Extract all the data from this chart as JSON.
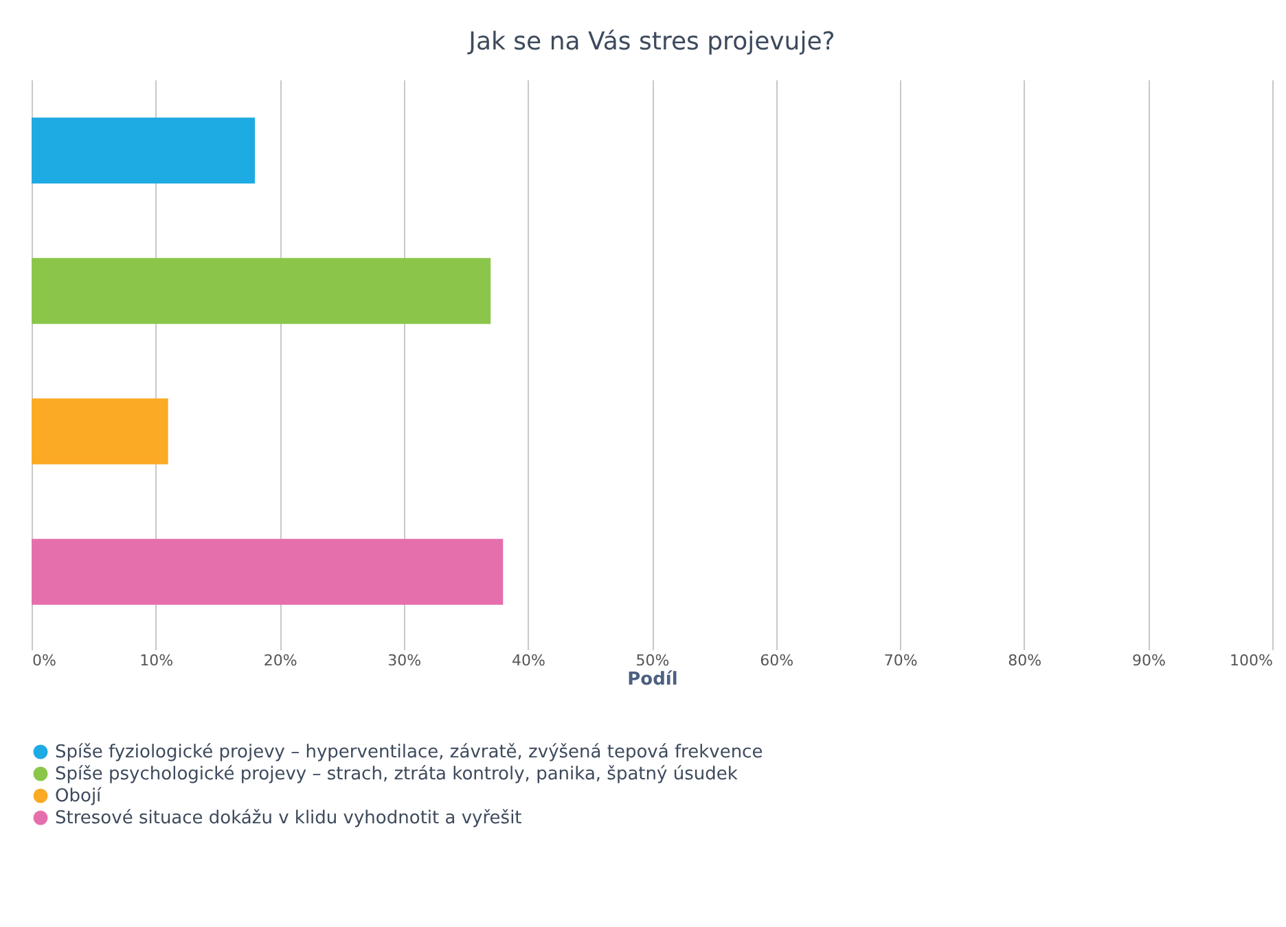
{
  "chart_data": {
    "type": "bar",
    "orientation": "horizontal",
    "title": "Jak se na Vás stres projevuje?",
    "xlabel": "Podíl",
    "categories": [
      null
    ],
    "series": [
      {
        "name": "Spíše fyziologické projevy – hyperventilace, závratě, zvýšená tepová frekvence",
        "color": "#1eaae2",
        "values": [
          18
        ]
      },
      {
        "name": "Spíše psychologické projevy – strach, ztráta kontroly, panika, špatný úsudek",
        "color": "#8bc64a",
        "values": [
          37
        ]
      },
      {
        "name": "Obojí",
        "color": "#fbaa26",
        "values": [
          11
        ]
      },
      {
        "name": "Stresové situace dokážu v klidu vyhodnotit a vyřešit",
        "color": "#e56fad",
        "values": [
          38
        ]
      }
    ],
    "xlim": [
      0,
      100
    ],
    "xticks": [
      {
        "value": 0,
        "label": "0%"
      },
      {
        "value": 10,
        "label": "10%"
      },
      {
        "value": 20,
        "label": "20%"
      },
      {
        "value": 30,
        "label": "30%"
      },
      {
        "value": 40,
        "label": "40%"
      },
      {
        "value": 50,
        "label": "50%"
      },
      {
        "value": 60,
        "label": "60%"
      },
      {
        "value": 70,
        "label": "70%"
      },
      {
        "value": 80,
        "label": "80%"
      },
      {
        "value": 90,
        "label": "90%"
      },
      {
        "value": 100,
        "label": "100%"
      }
    ],
    "grid": "x",
    "legend": "bottom",
    "tick_labels": "x"
  }
}
